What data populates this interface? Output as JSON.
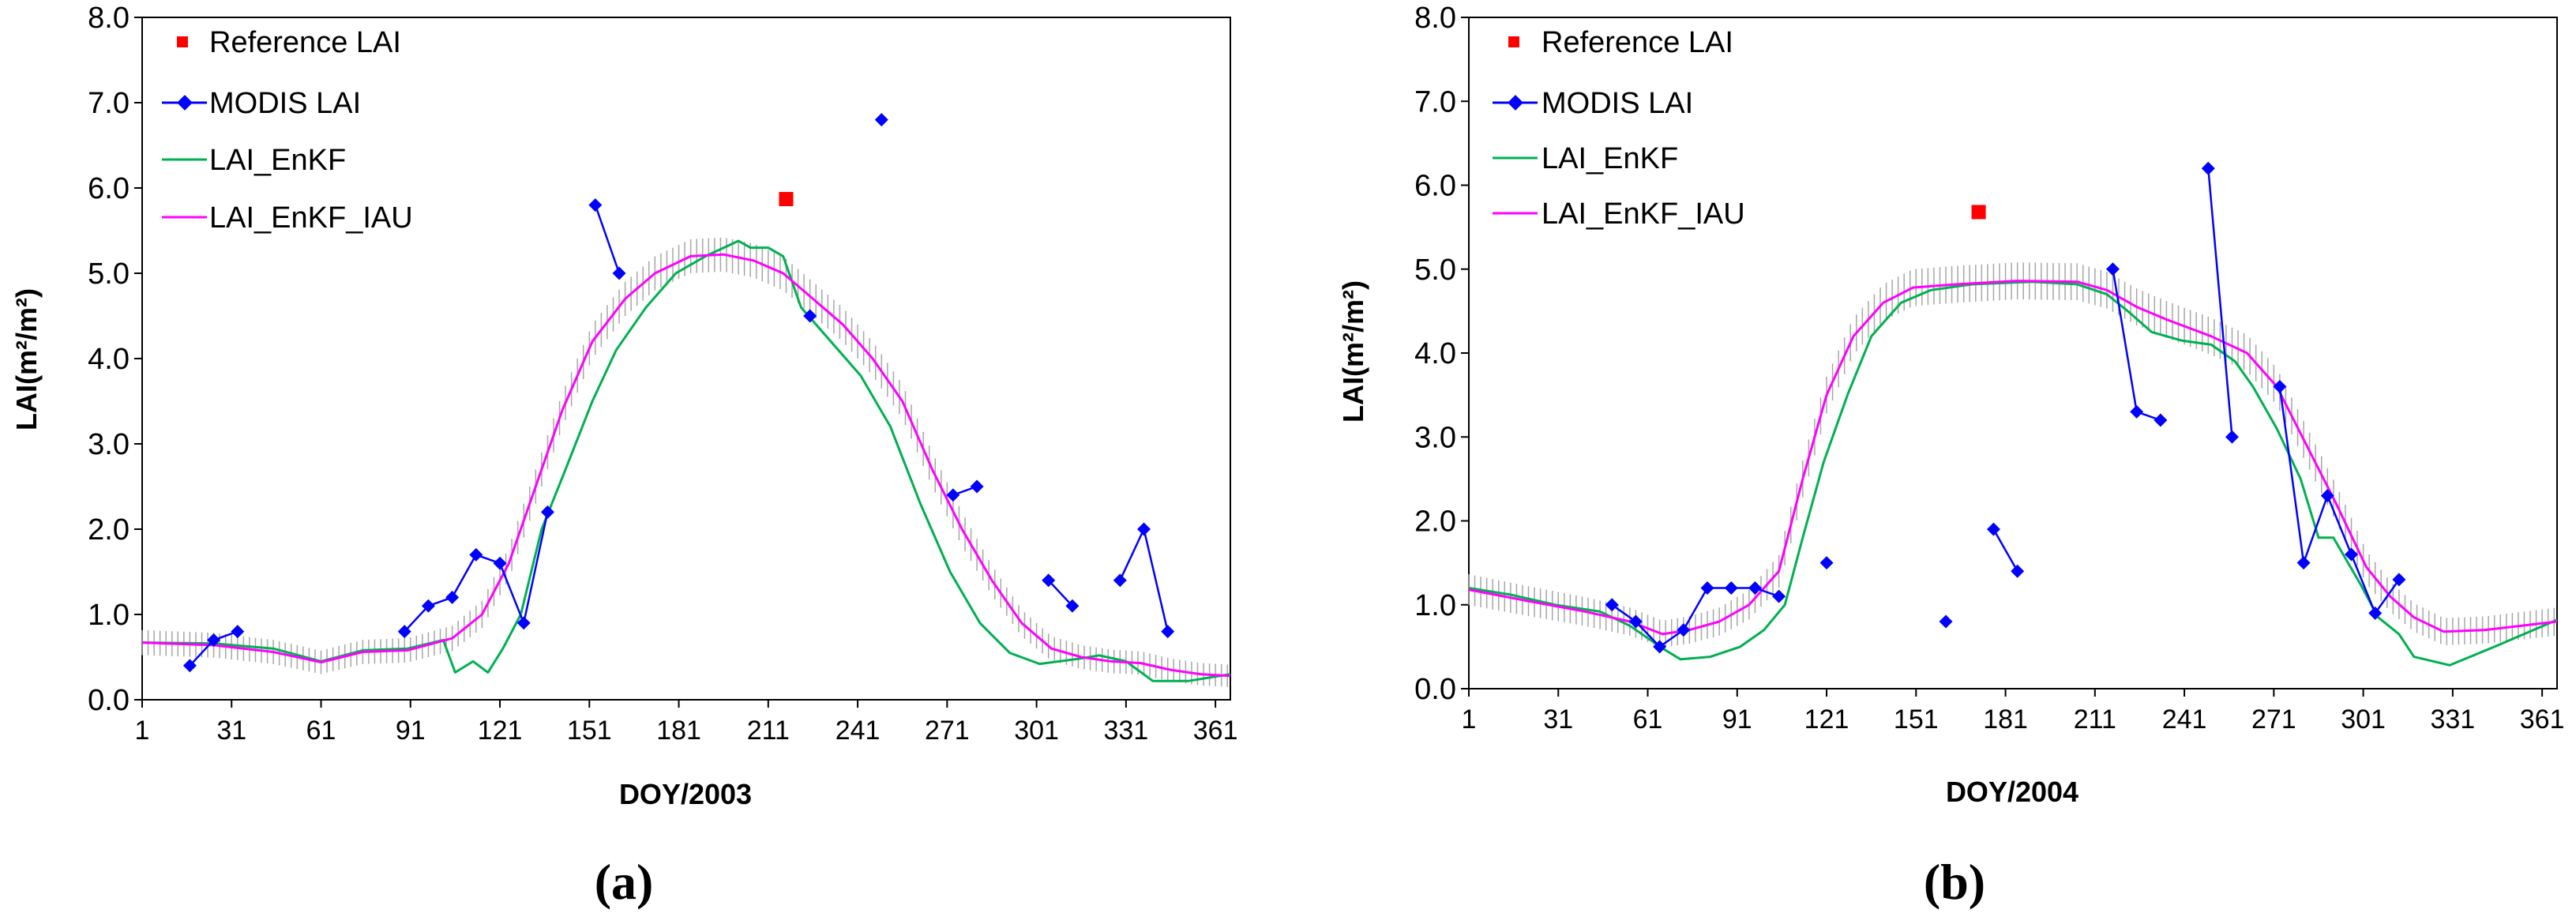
{
  "chart_data": [
    {
      "type": "line",
      "panel_label": "(a)",
      "xlabel": "DOY/2003",
      "ylabel": "LAI(m²/m²)",
      "ylim": [
        0,
        8
      ],
      "xlim": [
        1,
        366
      ],
      "x_ticks": [
        1,
        31,
        61,
        91,
        121,
        151,
        181,
        211,
        241,
        271,
        301,
        331,
        361
      ],
      "y_ticks": [
        "0.0",
        "1.0",
        "2.0",
        "3.0",
        "4.0",
        "5.0",
        "6.0",
        "7.0",
        "8.0"
      ],
      "legend": [
        "Reference LAI",
        "MODIS LAI",
        "LAI_EnKF",
        "LAI_EnKF_IAU"
      ],
      "colors": {
        "reference": "#ff0000",
        "modis": "#0000ff",
        "enkf": "#00b050",
        "iau": "#ff00ff",
        "errbar": "#a6a6a6"
      },
      "reference": [
        [
          217,
          5.87
        ]
      ],
      "modis": [
        [
          [
            17,
            0.4
          ],
          [
            25,
            0.7
          ],
          [
            33,
            0.8
          ]
        ],
        [
          [
            89,
            0.8
          ],
          [
            97,
            1.1
          ],
          [
            105,
            1.2
          ],
          [
            113,
            1.7
          ],
          [
            121,
            1.6
          ],
          [
            129,
            0.9
          ],
          [
            137,
            2.2
          ]
        ],
        [
          [
            153,
            5.8
          ],
          [
            161,
            5.0
          ]
        ],
        [
          [
            225,
            4.5
          ]
        ],
        [
          [
            249,
            6.8
          ]
        ],
        [
          [
            273,
            2.4
          ],
          [
            281,
            2.5
          ]
        ],
        [
          [
            305,
            1.4
          ],
          [
            313,
            1.1
          ]
        ],
        [
          [
            329,
            1.4
          ],
          [
            337,
            2.0
          ],
          [
            345,
            0.8
          ]
        ]
      ],
      "enkf": [
        [
          1,
          0.67
        ],
        [
          25,
          0.66
        ],
        [
          45,
          0.6
        ],
        [
          61,
          0.45
        ],
        [
          75,
          0.58
        ],
        [
          90,
          0.6
        ],
        [
          102,
          0.7
        ],
        [
          106,
          0.32
        ],
        [
          112,
          0.45
        ],
        [
          117,
          0.32
        ],
        [
          122,
          0.6
        ],
        [
          128,
          1.0
        ],
        [
          135,
          2.0
        ],
        [
          143,
          2.7
        ],
        [
          152,
          3.5
        ],
        [
          160,
          4.1
        ],
        [
          170,
          4.6
        ],
        [
          180,
          5.0
        ],
        [
          190,
          5.2
        ],
        [
          201,
          5.38
        ],
        [
          205,
          5.3
        ],
        [
          211,
          5.3
        ],
        [
          216,
          5.2
        ],
        [
          222,
          4.6
        ],
        [
          232,
          4.2
        ],
        [
          242,
          3.8
        ],
        [
          252,
          3.2
        ],
        [
          262,
          2.3
        ],
        [
          272,
          1.5
        ],
        [
          282,
          0.9
        ],
        [
          292,
          0.55
        ],
        [
          302,
          0.42
        ],
        [
          315,
          0.48
        ],
        [
          322,
          0.52
        ],
        [
          331,
          0.45
        ],
        [
          340,
          0.22
        ],
        [
          352,
          0.22
        ],
        [
          366,
          0.3
        ]
      ],
      "iau": [
        [
          1,
          0.67
        ],
        [
          25,
          0.64
        ],
        [
          45,
          0.56
        ],
        [
          61,
          0.44
        ],
        [
          75,
          0.56
        ],
        [
          90,
          0.58
        ],
        [
          105,
          0.72
        ],
        [
          115,
          1.0
        ],
        [
          124,
          1.6
        ],
        [
          133,
          2.5
        ],
        [
          142,
          3.4
        ],
        [
          152,
          4.2
        ],
        [
          163,
          4.7
        ],
        [
          173,
          5.0
        ],
        [
          185,
          5.2
        ],
        [
          196,
          5.22
        ],
        [
          206,
          5.15
        ],
        [
          216,
          5.0
        ],
        [
          226,
          4.7
        ],
        [
          236,
          4.4
        ],
        [
          246,
          4.0
        ],
        [
          256,
          3.5
        ],
        [
          266,
          2.7
        ],
        [
          276,
          2.0
        ],
        [
          286,
          1.4
        ],
        [
          296,
          0.9
        ],
        [
          306,
          0.6
        ],
        [
          316,
          0.5
        ],
        [
          326,
          0.45
        ],
        [
          336,
          0.43
        ],
        [
          346,
          0.35
        ],
        [
          356,
          0.3
        ],
        [
          366,
          0.28
        ]
      ],
      "errbar_halfwidth": 0.2
    },
    {
      "type": "line",
      "panel_label": "(b)",
      "xlabel": "DOY/2004",
      "ylabel": "LAI(m²/m²)",
      "ylim": [
        0,
        8
      ],
      "xlim": [
        1,
        366
      ],
      "x_ticks": [
        1,
        31,
        61,
        91,
        121,
        151,
        181,
        211,
        241,
        271,
        301,
        331,
        361
      ],
      "y_ticks": [
        "0.0",
        "1.0",
        "2.0",
        "3.0",
        "4.0",
        "5.0",
        "6.0",
        "7.0",
        "8.0"
      ],
      "legend": [
        "Reference LAI",
        "MODIS LAI",
        "LAI_EnKF",
        "LAI_EnKF_IAU"
      ],
      "colors": {
        "reference": "#ff0000",
        "modis": "#0000ff",
        "enkf": "#00b050",
        "iau": "#ff00ff",
        "errbar": "#a6a6a6"
      },
      "reference": [
        [
          172,
          5.68
        ]
      ],
      "modis": [
        [
          [
            49,
            1.0
          ],
          [
            57,
            0.8
          ],
          [
            65,
            0.5
          ],
          [
            73,
            0.7
          ],
          [
            81,
            1.2
          ],
          [
            89,
            1.2
          ],
          [
            97,
            1.2
          ],
          [
            105,
            1.1
          ]
        ],
        [
          [
            121,
            1.5
          ]
        ],
        [
          [
            161,
            0.8
          ]
        ],
        [
          [
            177,
            1.9
          ],
          [
            185,
            1.4
          ]
        ],
        [
          [
            217,
            5.0
          ],
          [
            225,
            3.3
          ],
          [
            233,
            3.2
          ]
        ],
        [
          [
            249,
            6.2
          ],
          [
            257,
            3.0
          ]
        ],
        [
          [
            273,
            3.6
          ],
          [
            281,
            1.5
          ],
          [
            289,
            2.3
          ],
          [
            297,
            1.6
          ],
          [
            305,
            0.9
          ],
          [
            313,
            1.3
          ]
        ]
      ],
      "enkf": [
        [
          1,
          1.2
        ],
        [
          15,
          1.12
        ],
        [
          30,
          1.0
        ],
        [
          45,
          0.92
        ],
        [
          55,
          0.75
        ],
        [
          66,
          0.48
        ],
        [
          72,
          0.35
        ],
        [
          82,
          0.38
        ],
        [
          92,
          0.5
        ],
        [
          100,
          0.7
        ],
        [
          107,
          1.0
        ],
        [
          113,
          1.8
        ],
        [
          120,
          2.7
        ],
        [
          128,
          3.5
        ],
        [
          136,
          4.2
        ],
        [
          146,
          4.6
        ],
        [
          156,
          4.75
        ],
        [
          170,
          4.82
        ],
        [
          190,
          4.85
        ],
        [
          205,
          4.82
        ],
        [
          215,
          4.7
        ],
        [
          222,
          4.5
        ],
        [
          230,
          4.25
        ],
        [
          240,
          4.15
        ],
        [
          250,
          4.1
        ],
        [
          258,
          3.9
        ],
        [
          264,
          3.6
        ],
        [
          272,
          3.1
        ],
        [
          280,
          2.5
        ],
        [
          286,
          1.8
        ],
        [
          291,
          1.8
        ],
        [
          300,
          1.25
        ],
        [
          306,
          0.85
        ],
        [
          313,
          0.65
        ],
        [
          318,
          0.38
        ],
        [
          330,
          0.28
        ],
        [
          345,
          0.5
        ],
        [
          366,
          0.82
        ]
      ],
      "iau": [
        [
          1,
          1.18
        ],
        [
          20,
          1.05
        ],
        [
          40,
          0.92
        ],
        [
          55,
          0.8
        ],
        [
          66,
          0.65
        ],
        [
          75,
          0.7
        ],
        [
          85,
          0.8
        ],
        [
          95,
          1.0
        ],
        [
          105,
          1.4
        ],
        [
          113,
          2.5
        ],
        [
          121,
          3.5
        ],
        [
          130,
          4.2
        ],
        [
          140,
          4.6
        ],
        [
          150,
          4.78
        ],
        [
          165,
          4.82
        ],
        [
          185,
          4.86
        ],
        [
          205,
          4.85
        ],
        [
          215,
          4.75
        ],
        [
          225,
          4.55
        ],
        [
          235,
          4.4
        ],
        [
          250,
          4.2
        ],
        [
          262,
          4.0
        ],
        [
          272,
          3.6
        ],
        [
          282,
          2.9
        ],
        [
          292,
          2.2
        ],
        [
          302,
          1.45
        ],
        [
          310,
          1.1
        ],
        [
          318,
          0.85
        ],
        [
          328,
          0.68
        ],
        [
          342,
          0.7
        ],
        [
          366,
          0.8
        ]
      ],
      "errbar_halfwidth": 0.22
    }
  ]
}
